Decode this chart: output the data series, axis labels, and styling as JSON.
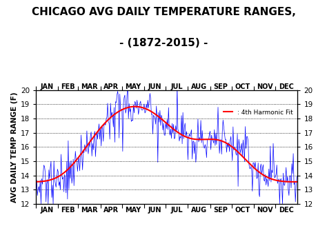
{
  "title_line1": "CHICAGO AVG DAILY TEMPERATURE RANGES,",
  "title_line2": "- (1872-2015) -",
  "ylabel": "AVG DAILY TEMP RANGE (F)",
  "ylim": [
    12,
    20
  ],
  "yticks": [
    12,
    13,
    14,
    15,
    16,
    17,
    18,
    19,
    20
  ],
  "months": [
    "JAN",
    "FEB",
    "MAR",
    "APR",
    "MAY",
    "JUN",
    "JUL",
    "AUG",
    "SEP",
    "OCT",
    "NOV",
    "DEC"
  ],
  "month_days": [
    31,
    28,
    31,
    30,
    31,
    30,
    31,
    31,
    30,
    31,
    30,
    31
  ],
  "harmonic_color": "#FF0000",
  "data_color": "#0000FF",
  "background_color": "#FFFFFF",
  "legend_label": ": 4th Harmonic Fit",
  "title_fontsize": 11,
  "label_fontsize": 7.5,
  "tick_fontsize": 7.5,
  "month_fontsize": 7.0,
  "harmonic_params": {
    "a0": 16.05,
    "a1": -2.25,
    "b1": 0.85,
    "a2": -0.55,
    "b2": -0.45,
    "a3": 0.2,
    "b3": 0.15,
    "a4": 0.1,
    "b4": -0.08
  }
}
